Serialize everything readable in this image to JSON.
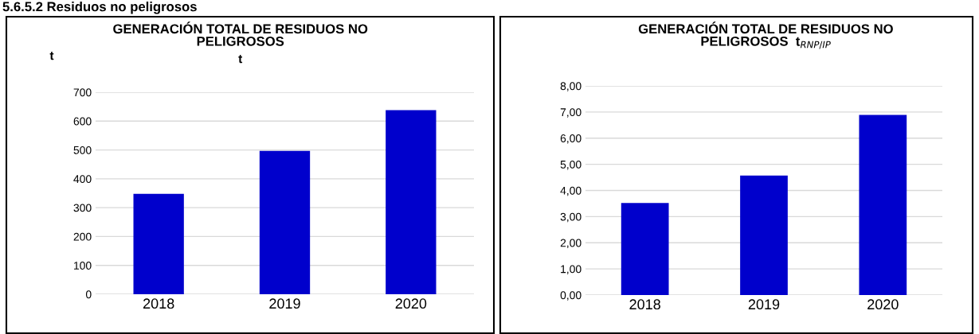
{
  "chart_data": [
    {
      "type": "bar",
      "title": "GENERACIÓN TOTAL DE RESIDUOS NO\nPELIGROSOS",
      "subtitle": "t",
      "ylabel": "t",
      "annotations": [
        "5.6.5.2 Residuos no peligrosos"
      ],
      "categories": [
        "2018",
        "2019",
        "2020"
      ],
      "values": [
        348,
        497,
        638
      ],
      "color": "#0000cc",
      "ylim": [
        0,
        700
      ],
      "yticks": [
        0,
        100,
        200,
        300,
        400,
        500,
        600,
        700
      ],
      "grid": "y",
      "legend": false
    },
    {
      "type": "bar",
      "title": "GENERACIÓN TOTAL DE RESIDUOS NO\nPELIGROSOS  t$_{RNP/IP}$",
      "categories": [
        "2018",
        "2019",
        "2020"
      ],
      "values": [
        3.52,
        4.57,
        6.89
      ],
      "color": "#0000cc",
      "ylim": [
        0,
        8
      ],
      "yticks": [
        {
          "value": 0,
          "label": "0,00"
        },
        {
          "value": 1,
          "label": "1,00"
        },
        {
          "value": 2,
          "label": "2,00"
        },
        {
          "value": 3,
          "label": "3,00"
        },
        {
          "value": 4,
          "label": "4,00"
        },
        {
          "value": 5,
          "label": "5,00"
        },
        {
          "value": 6,
          "label": "6,00"
        },
        {
          "value": 7,
          "label": "7,00"
        },
        {
          "value": 8,
          "label": "8,00"
        }
      ],
      "grid": "y",
      "legend": false
    }
  ]
}
